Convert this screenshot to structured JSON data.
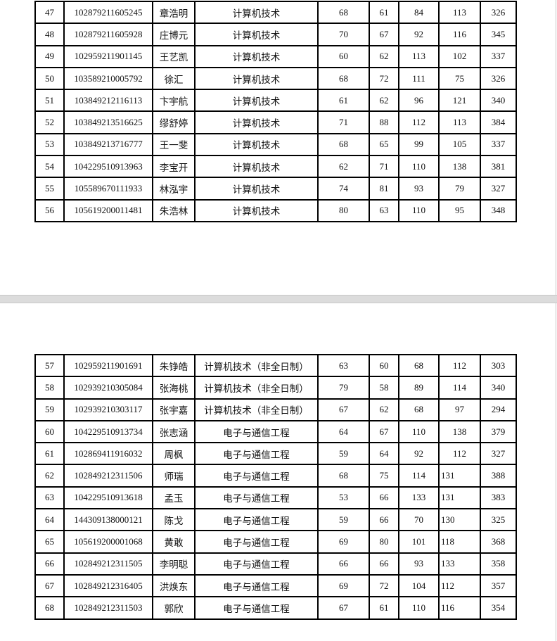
{
  "pages": [
    {
      "rows": [
        {
          "no": "47",
          "id": "102879211605245",
          "name": "章浩明",
          "major": "计算机技术",
          "s1": "68",
          "s2": "61",
          "s3": "84",
          "s4": "113",
          "total": "326"
        },
        {
          "no": "48",
          "id": "102879211605928",
          "name": "庄博元",
          "major": "计算机技术",
          "s1": "70",
          "s2": "67",
          "s3": "92",
          "s4": "116",
          "total": "345"
        },
        {
          "no": "49",
          "id": "102959211901145",
          "name": "王艺凯",
          "major": "计算机技术",
          "s1": "60",
          "s2": "62",
          "s3": "113",
          "s4": "102",
          "total": "337"
        },
        {
          "no": "50",
          "id": "103589210005792",
          "name": "徐汇",
          "major": "计算机技术",
          "s1": "68",
          "s2": "72",
          "s3": "111",
          "s4": "75",
          "total": "326"
        },
        {
          "no": "51",
          "id": "103849212116113",
          "name": "卞宇航",
          "major": "计算机技术",
          "s1": "61",
          "s2": "62",
          "s3": "96",
          "s4": "121",
          "total": "340"
        },
        {
          "no": "52",
          "id": "103849213516625",
          "name": "缪舒婷",
          "major": "计算机技术",
          "s1": "71",
          "s2": "88",
          "s3": "112",
          "s4": "113",
          "total": "384"
        },
        {
          "no": "53",
          "id": "103849213716777",
          "name": "王一斐",
          "major": "计算机技术",
          "s1": "68",
          "s2": "65",
          "s3": "99",
          "s4": "105",
          "total": "337"
        },
        {
          "no": "54",
          "id": "104229510913963",
          "name": "李宝开",
          "major": "计算机技术",
          "s1": "62",
          "s2": "71",
          "s3": "110",
          "s4": "138",
          "total": "381"
        },
        {
          "no": "55",
          "id": "105589670111933",
          "name": "林泓宇",
          "major": "计算机技术",
          "s1": "74",
          "s2": "81",
          "s3": "93",
          "s4": "79",
          "total": "327"
        },
        {
          "no": "56",
          "id": "105619200011481",
          "name": "朱浩林",
          "major": "计算机技术",
          "s1": "80",
          "s2": "63",
          "s3": "110",
          "s4": "95",
          "total": "348"
        }
      ]
    },
    {
      "rows": [
        {
          "no": "57",
          "id": "102959211901691",
          "name": "朱铮皓",
          "major": "计算机技术（非全日制）",
          "s1": "63",
          "s2": "60",
          "s3": "68",
          "s4": "112",
          "total": "303"
        },
        {
          "no": "58",
          "id": "102939210305084",
          "name": "张海桃",
          "major": "计算机技术（非全日制）",
          "s1": "79",
          "s2": "58",
          "s3": "89",
          "s4": "114",
          "total": "340"
        },
        {
          "no": "59",
          "id": "102939210303117",
          "name": "张宇嘉",
          "major": "计算机技术（非全日制）",
          "s1": "67",
          "s2": "62",
          "s3": "68",
          "s4": "97",
          "total": "294"
        },
        {
          "no": "60",
          "id": "104229510913734",
          "name": "张志涵",
          "major": "电子与通信工程",
          "s1": "64",
          "s2": "67",
          "s3": "110",
          "s4": "138",
          "total": "379"
        },
        {
          "no": "61",
          "id": "102869411916032",
          "name": "周枫",
          "major": "电子与通信工程",
          "s1": "59",
          "s2": "64",
          "s3": "92",
          "s4": "112",
          "total": "327"
        },
        {
          "no": "62",
          "id": "102849212311506",
          "name": "师瑞",
          "major": "电子与通信工程",
          "s1": "68",
          "s2": "75",
          "s3": "114",
          "s4": "131",
          "total": "388",
          "s4left": true
        },
        {
          "no": "63",
          "id": "104229510913618",
          "name": "孟玉",
          "major": "电子与通信工程",
          "s1": "53",
          "s2": "66",
          "s3": "133",
          "s4": "131",
          "total": "383",
          "s4left": true
        },
        {
          "no": "64",
          "id": "144309138000121",
          "name": "陈戈",
          "major": "电子与通信工程",
          "s1": "59",
          "s2": "66",
          "s3": "70",
          "s4": "130",
          "total": "325",
          "s4left": true
        },
        {
          "no": "65",
          "id": "105619200001068",
          "name": "黄敢",
          "major": "电子与通信工程",
          "s1": "69",
          "s2": "80",
          "s3": "101",
          "s4": "118",
          "total": "368",
          "s4left": true
        },
        {
          "no": "66",
          "id": "102849212311505",
          "name": "李明聪",
          "major": "电子与通信工程",
          "s1": "66",
          "s2": "66",
          "s3": "93",
          "s4": "133",
          "total": "358",
          "s4left": true
        },
        {
          "no": "67",
          "id": "102849212316405",
          "name": "洪焕东",
          "major": "电子与通信工程",
          "s1": "69",
          "s2": "72",
          "s3": "104",
          "s4": "112",
          "total": "357",
          "s4left": true
        },
        {
          "no": "68",
          "id": "102849212311503",
          "name": "郭欣",
          "major": "电子与通信工程",
          "s1": "67",
          "s2": "61",
          "s3": "110",
          "s4": "116",
          "total": "354",
          "s4left": true
        }
      ]
    }
  ]
}
